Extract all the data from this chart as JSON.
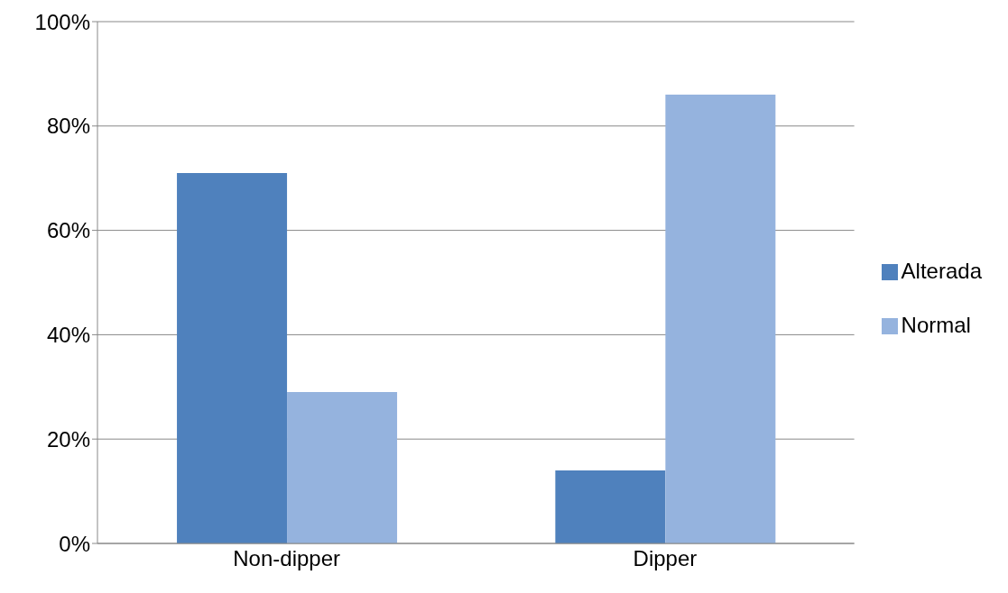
{
  "chart_data": {
    "type": "bar",
    "categories": [
      "Non-dipper",
      "Dipper"
    ],
    "series": [
      {
        "name": "Alterada",
        "color": "#4f81bd",
        "values": [
          71,
          14
        ]
      },
      {
        "name": "Normal",
        "color": "#95b3de",
        "values": [
          29,
          86
        ]
      }
    ],
    "ylim": [
      0,
      100
    ],
    "yticks": [
      {
        "value": 0,
        "label": "0%"
      },
      {
        "value": 20,
        "label": "20%"
      },
      {
        "value": 40,
        "label": "40%"
      },
      {
        "value": 60,
        "label": "60%"
      },
      {
        "value": 80,
        "label": "80%"
      },
      {
        "value": 100,
        "label": "100%"
      }
    ],
    "grid": "y",
    "legend": "right"
  }
}
